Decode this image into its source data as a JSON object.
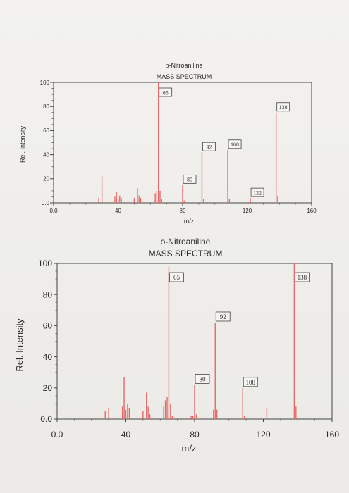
{
  "colors": {
    "peak": "#e46a6a",
    "axis": "#333333",
    "box": "#444444"
  },
  "chart_data": [
    {
      "type": "bar",
      "title": "p-Nitroaniline",
      "subtitle": "MASS SPECTRUM",
      "xlabel": "m/z",
      "ylabel": "Rel. Intensity",
      "xlim": [
        0,
        160
      ],
      "ylim": [
        0,
        100
      ],
      "x_ticks": [
        "0.0",
        "40",
        "80",
        "120",
        "160"
      ],
      "y_ticks": [
        "0.0",
        "20",
        "40",
        "60",
        "80",
        "100"
      ],
      "peaks": [
        {
          "mz": 28,
          "intensity": 4
        },
        {
          "mz": 30,
          "intensity": 22
        },
        {
          "mz": 38,
          "intensity": 5
        },
        {
          "mz": 39,
          "intensity": 9
        },
        {
          "mz": 40,
          "intensity": 4
        },
        {
          "mz": 41,
          "intensity": 6
        },
        {
          "mz": 42,
          "intensity": 4
        },
        {
          "mz": 50,
          "intensity": 4
        },
        {
          "mz": 52,
          "intensity": 12
        },
        {
          "mz": 53,
          "intensity": 6
        },
        {
          "mz": 54,
          "intensity": 4
        },
        {
          "mz": 63,
          "intensity": 8
        },
        {
          "mz": 64,
          "intensity": 10
        },
        {
          "mz": 65,
          "intensity": 100
        },
        {
          "mz": 66,
          "intensity": 10
        },
        {
          "mz": 67,
          "intensity": 3
        },
        {
          "mz": 80,
          "intensity": 15
        },
        {
          "mz": 81,
          "intensity": 2
        },
        {
          "mz": 92,
          "intensity": 42
        },
        {
          "mz": 93,
          "intensity": 3
        },
        {
          "mz": 108,
          "intensity": 44
        },
        {
          "mz": 109,
          "intensity": 3
        },
        {
          "mz": 122,
          "intensity": 4
        },
        {
          "mz": 138,
          "intensity": 75
        },
        {
          "mz": 139,
          "intensity": 6
        }
      ],
      "peak_labels": [
        "65",
        "80",
        "92",
        "108",
        "122",
        "138"
      ]
    },
    {
      "type": "bar",
      "title": "o-Nitroaniline",
      "subtitle": "MASS SPECTRUM",
      "xlabel": "m/z",
      "ylabel": "Rel. Intensity",
      "xlim": [
        0,
        160
      ],
      "ylim": [
        0,
        100
      ],
      "x_ticks": [
        "0.0",
        "40",
        "80",
        "120",
        "160"
      ],
      "y_ticks": [
        "0.0",
        "20",
        "40",
        "60",
        "80",
        "100"
      ],
      "peaks": [
        {
          "mz": 28,
          "intensity": 5
        },
        {
          "mz": 30,
          "intensity": 7
        },
        {
          "mz": 38,
          "intensity": 8
        },
        {
          "mz": 39,
          "intensity": 27
        },
        {
          "mz": 40,
          "intensity": 6
        },
        {
          "mz": 41,
          "intensity": 10
        },
        {
          "mz": 42,
          "intensity": 7
        },
        {
          "mz": 50,
          "intensity": 5
        },
        {
          "mz": 52,
          "intensity": 17
        },
        {
          "mz": 53,
          "intensity": 8
        },
        {
          "mz": 54,
          "intensity": 3
        },
        {
          "mz": 62,
          "intensity": 8
        },
        {
          "mz": 63,
          "intensity": 12
        },
        {
          "mz": 64,
          "intensity": 14
        },
        {
          "mz": 65,
          "intensity": 98
        },
        {
          "mz": 66,
          "intensity": 10
        },
        {
          "mz": 67,
          "intensity": 2
        },
        {
          "mz": 78,
          "intensity": 2
        },
        {
          "mz": 79,
          "intensity": 2
        },
        {
          "mz": 80,
          "intensity": 22
        },
        {
          "mz": 81,
          "intensity": 3
        },
        {
          "mz": 91,
          "intensity": 6
        },
        {
          "mz": 92,
          "intensity": 62
        },
        {
          "mz": 93,
          "intensity": 6
        },
        {
          "mz": 108,
          "intensity": 20
        },
        {
          "mz": 109,
          "intensity": 2
        },
        {
          "mz": 122,
          "intensity": 7
        },
        {
          "mz": 138,
          "intensity": 100
        },
        {
          "mz": 139,
          "intensity": 8
        }
      ],
      "peak_labels": [
        "65",
        "80",
        "92",
        "108",
        "138"
      ]
    }
  ]
}
